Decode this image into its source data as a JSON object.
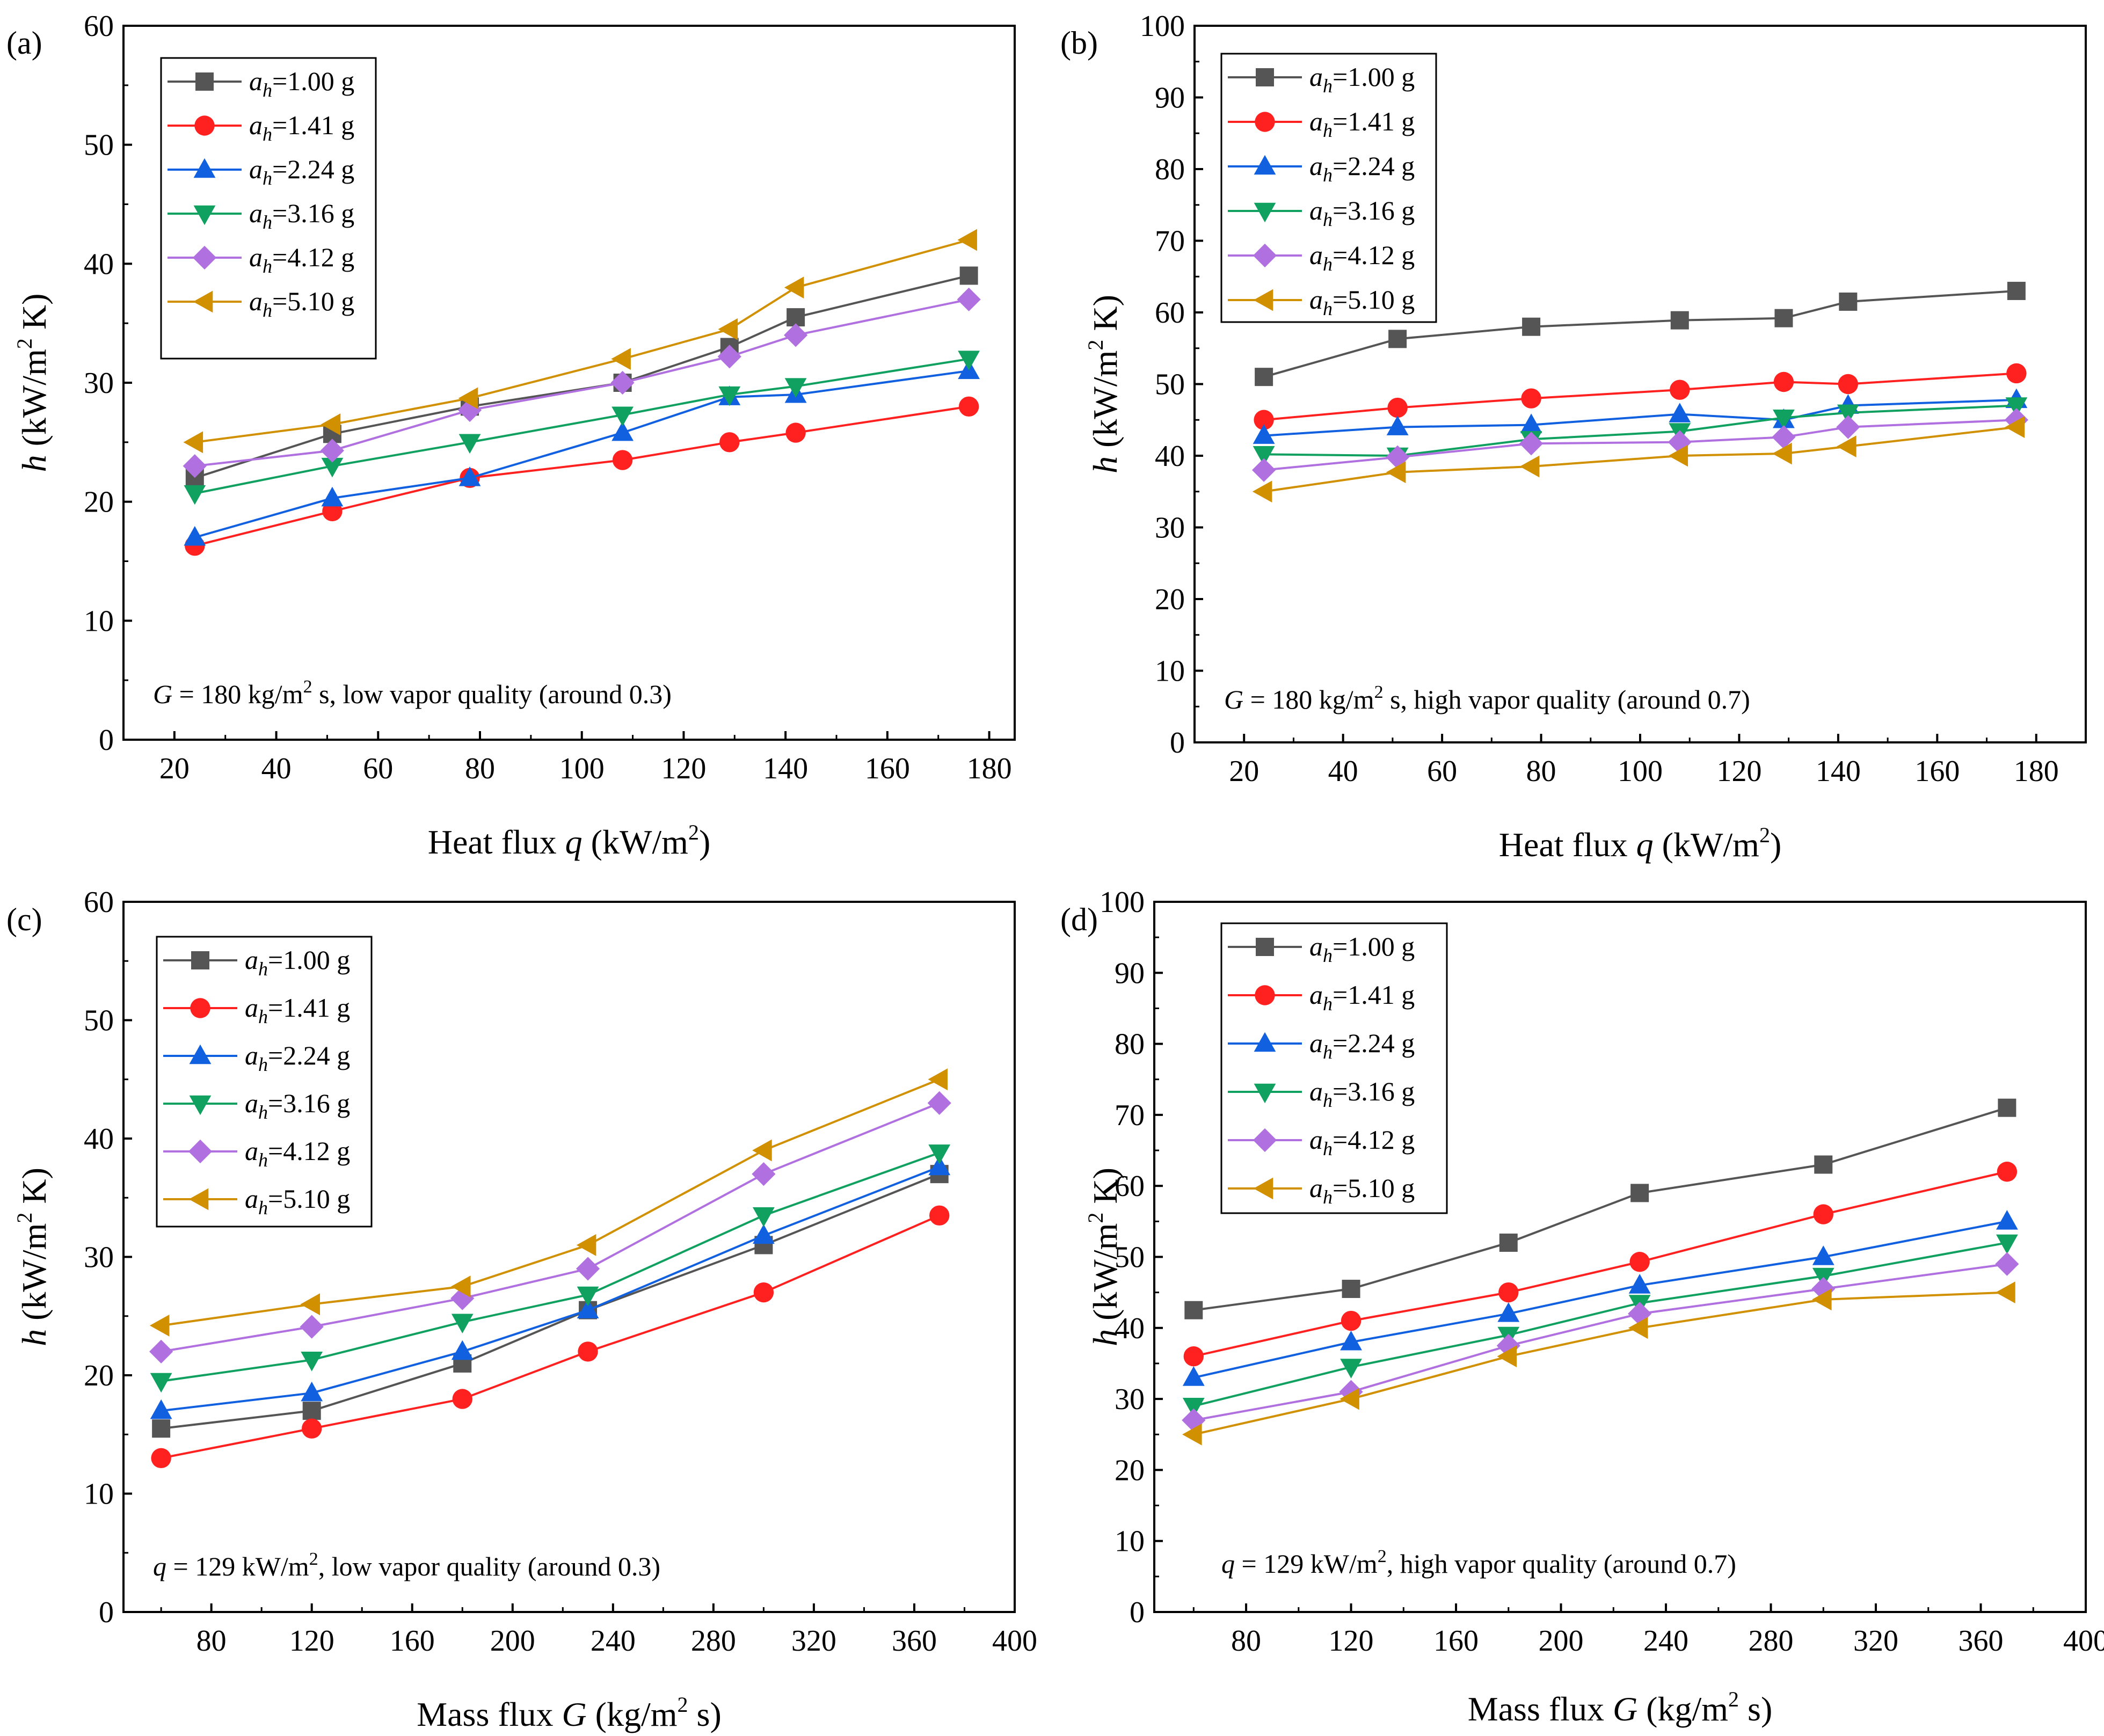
{
  "figure": {
    "series_colors": [
      "#555555",
      "#ff2020",
      "#1060e0",
      "#10a060",
      "#b070e0",
      "#d09000"
    ],
    "marker_shapes": [
      "square",
      "circle",
      "triangle-up",
      "triangle-down",
      "diamond",
      "triangle-left"
    ]
  },
  "chart_data": [
    {
      "type": "line",
      "panel_label": "(a)",
      "xlabel_prefix": "Heat flux ",
      "xlabel_var": "q",
      "xlabel_suffix": " (kW/m",
      "xlabel_sup": "2",
      "xlabel_close": ")",
      "ylabel_var": "h",
      "ylabel_mid": " (kW/m",
      "ylabel_sup": "2",
      "ylabel_close": " K)",
      "xlim": [
        10,
        185
      ],
      "ylim": [
        0,
        60
      ],
      "xticks": [
        20,
        40,
        60,
        80,
        100,
        120,
        140,
        160,
        180
      ],
      "yticks": [
        0,
        10,
        20,
        30,
        40,
        50,
        60
      ],
      "x": [
        24,
        51,
        78,
        108,
        129,
        142,
        176
      ],
      "legend_placement": "top-left",
      "annotation": {
        "var": "G",
        "pre": " = 180 kg/m",
        "sup": "2",
        "post": " s, low vapor quality (around 0.3)"
      },
      "series": [
        {
          "prefix": "a",
          "sub": "h",
          "name": "=1.00 g",
          "values": [
            22.0,
            25.7,
            28.0,
            30.0,
            33.0,
            35.5,
            39.0
          ]
        },
        {
          "prefix": "a",
          "sub": "h",
          "name": "=1.41 g",
          "values": [
            16.3,
            19.2,
            22.0,
            23.5,
            25.0,
            25.8,
            28.0
          ]
        },
        {
          "prefix": "a",
          "sub": "h",
          "name": "=2.24 g",
          "values": [
            17.0,
            20.3,
            22.0,
            25.8,
            28.8,
            29.0,
            31.0
          ]
        },
        {
          "prefix": "a",
          "sub": "h",
          "name": "=3.16 g",
          "values": [
            20.7,
            23.0,
            25.0,
            27.3,
            29.0,
            29.7,
            32.0
          ]
        },
        {
          "prefix": "a",
          "sub": "h",
          "name": "=4.12 g",
          "values": [
            23.0,
            24.3,
            27.7,
            30.0,
            32.2,
            34.0,
            37.0
          ]
        },
        {
          "prefix": "a",
          "sub": "h",
          "name": "=5.10 g",
          "values": [
            25.0,
            26.5,
            28.7,
            32.0,
            34.5,
            38.0,
            42.0
          ]
        }
      ]
    },
    {
      "type": "line",
      "panel_label": "(b)",
      "xlabel_prefix": "Heat flux ",
      "xlabel_var": "q",
      "xlabel_suffix": " (kW/m",
      "xlabel_sup": "2",
      "xlabel_close": ")",
      "ylabel_var": "h",
      "ylabel_mid": " (kW/m",
      "ylabel_sup": "2",
      "ylabel_close": " K)",
      "xlim": [
        10,
        190
      ],
      "ylim": [
        0,
        100
      ],
      "xticks": [
        20,
        40,
        60,
        80,
        100,
        120,
        140,
        160,
        180
      ],
      "yticks": [
        0,
        10,
        20,
        30,
        40,
        50,
        60,
        70,
        80,
        90,
        100
      ],
      "x": [
        24,
        51,
        78,
        108,
        129,
        142,
        176
      ],
      "legend_placement": "top-left",
      "annotation": {
        "var": "G",
        "pre": " = 180 kg/m",
        "sup": "2",
        "post": " s, high vapor quality (around 0.7)"
      },
      "series": [
        {
          "prefix": "a",
          "sub": "h",
          "name": "=1.00 g",
          "values": [
            51.0,
            56.3,
            58.0,
            58.9,
            59.2,
            61.5,
            63.0
          ]
        },
        {
          "prefix": "a",
          "sub": "h",
          "name": "=1.41 g",
          "values": [
            45.0,
            46.7,
            48.0,
            49.2,
            50.3,
            50.0,
            51.5
          ]
        },
        {
          "prefix": "a",
          "sub": "h",
          "name": "=2.24 g",
          "values": [
            42.8,
            44.0,
            44.3,
            45.8,
            45.0,
            47.0,
            47.8
          ]
        },
        {
          "prefix": "a",
          "sub": "h",
          "name": "=3.16 g",
          "values": [
            40.2,
            40.0,
            42.3,
            43.4,
            45.3,
            46.0,
            47.0
          ]
        },
        {
          "prefix": "a",
          "sub": "h",
          "name": "=4.12 g",
          "values": [
            38.0,
            39.8,
            41.7,
            41.9,
            42.6,
            44.0,
            45.0
          ]
        },
        {
          "prefix": "a",
          "sub": "h",
          "name": "=5.10 g",
          "values": [
            35.0,
            37.7,
            38.5,
            40.0,
            40.3,
            41.3,
            44.0
          ]
        }
      ]
    },
    {
      "type": "line",
      "panel_label": "(c)",
      "xlabel_prefix": "Mass flux ",
      "xlabel_var": "G",
      "xlabel_suffix": " (kg/m",
      "xlabel_sup": "2",
      "xlabel_close": " s)",
      "ylabel_var": "h",
      "ylabel_mid": " (kW/m",
      "ylabel_sup": "2",
      "ylabel_close": " K)",
      "xlim": [
        45,
        400
      ],
      "ylim": [
        0,
        60
      ],
      "xticks": [
        80,
        120,
        160,
        200,
        240,
        280,
        320,
        360,
        400
      ],
      "yticks": [
        0,
        10,
        20,
        30,
        40,
        50,
        60
      ],
      "x": [
        60,
        120,
        180,
        230,
        300,
        370
      ],
      "legend_placement": "top-left",
      "annotation": {
        "var": "q",
        "pre": " = 129 kW/m",
        "sup": "2",
        "post": ", low vapor quality (around 0.3)"
      },
      "series": [
        {
          "prefix": "a",
          "sub": "h",
          "name": "=1.00 g",
          "values": [
            15.5,
            17.0,
            21.0,
            25.5,
            31.0,
            37.0
          ]
        },
        {
          "prefix": "a",
          "sub": "h",
          "name": "=1.41 g",
          "values": [
            13.0,
            15.5,
            18.0,
            22.0,
            27.0,
            33.5
          ]
        },
        {
          "prefix": "a",
          "sub": "h",
          "name": "=2.24 g",
          "values": [
            17.0,
            18.5,
            22.0,
            25.5,
            31.8,
            37.6
          ]
        },
        {
          "prefix": "a",
          "sub": "h",
          "name": "=3.16 g",
          "values": [
            19.5,
            21.3,
            24.5,
            26.8,
            33.5,
            38.8
          ]
        },
        {
          "prefix": "a",
          "sub": "h",
          "name": "=4.12 g",
          "values": [
            22.0,
            24.1,
            26.5,
            29.0,
            37.0,
            43.0
          ]
        },
        {
          "prefix": "a",
          "sub": "h",
          "name": "=5.10 g",
          "values": [
            24.2,
            26.0,
            27.5,
            31.0,
            39.0,
            45.0
          ]
        }
      ]
    },
    {
      "type": "line",
      "panel_label": "(d)",
      "xlabel_prefix": "Mass flux ",
      "xlabel_var": "G",
      "xlabel_suffix": " (kg/m",
      "xlabel_sup": "2",
      "xlabel_close": " s)",
      "ylabel_var": "h",
      "ylabel_mid": " (kW/m",
      "ylabel_sup": "2",
      "ylabel_close": " K)",
      "xlim": [
        45,
        400
      ],
      "ylim": [
        0,
        100
      ],
      "xticks": [
        80,
        120,
        160,
        200,
        240,
        280,
        320,
        360,
        400
      ],
      "yticks": [
        0,
        10,
        20,
        30,
        40,
        50,
        60,
        70,
        80,
        90,
        100
      ],
      "x": [
        60,
        120,
        180,
        230,
        300,
        370
      ],
      "legend_placement": "top-left",
      "annotation": {
        "var": "q",
        "pre": " = 129 kW/m",
        "sup": "2",
        "post": ", high vapor quality (around 0.7)"
      },
      "series": [
        {
          "prefix": "a",
          "sub": "h",
          "name": "=1.00 g",
          "values": [
            42.5,
            45.5,
            52.0,
            59.0,
            63.0,
            71.0
          ]
        },
        {
          "prefix": "a",
          "sub": "h",
          "name": "=1.41 g",
          "values": [
            36.0,
            41.0,
            45.0,
            49.3,
            56.0,
            62.0
          ]
        },
        {
          "prefix": "a",
          "sub": "h",
          "name": "=2.24 g",
          "values": [
            33.0,
            38.0,
            42.0,
            46.0,
            50.0,
            55.0
          ]
        },
        {
          "prefix": "a",
          "sub": "h",
          "name": "=3.16 g",
          "values": [
            29.0,
            34.5,
            39.0,
            43.5,
            47.3,
            52.0
          ]
        },
        {
          "prefix": "a",
          "sub": "h",
          "name": "=4.12 g",
          "values": [
            27.0,
            31.0,
            37.5,
            42.0,
            45.5,
            49.0
          ]
        },
        {
          "prefix": "a",
          "sub": "h",
          "name": "=5.10 g",
          "values": [
            25.0,
            30.0,
            36.0,
            40.0,
            44.0,
            45.0
          ]
        }
      ]
    }
  ]
}
